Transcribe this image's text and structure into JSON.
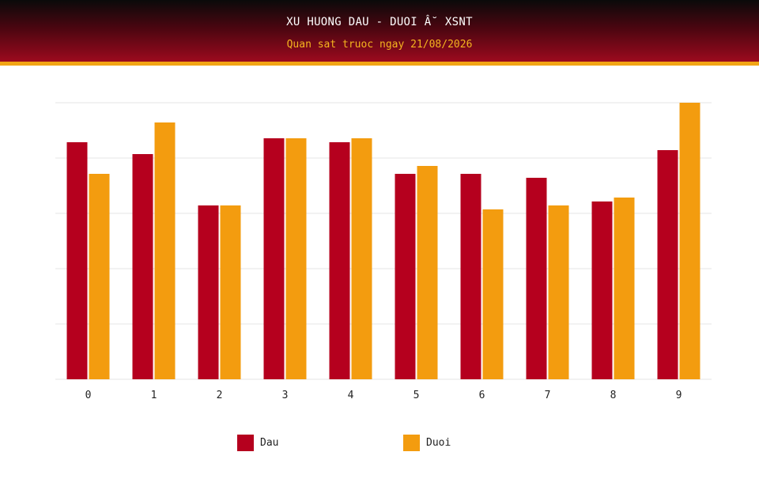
{
  "header": {
    "title": "XU HUONG DAU - DUOI Â˘ XSNT",
    "subtitle": "Quan sat truoc ngay 21/08/2026"
  },
  "colors": {
    "dau": "#b5001e",
    "duoi": "#f39c0f",
    "grid": "#e6e6e6"
  },
  "chart_data": {
    "type": "bar",
    "categories": [
      "0",
      "1",
      "2",
      "3",
      "4",
      "5",
      "6",
      "7",
      "8",
      "9"
    ],
    "series": [
      {
        "name": "Dau",
        "values": [
          60,
          57,
          44,
          61,
          60,
          52,
          52,
          51,
          45,
          58
        ]
      },
      {
        "name": "Duoi",
        "values": [
          52,
          65,
          44,
          61,
          61,
          54,
          43,
          44,
          46,
          70
        ]
      }
    ],
    "title": "XU HUONG DAU - DUOI Â˘ XSNT",
    "subtitle": "Quan sat truoc ngay 21/08/2026",
    "xlabel": "",
    "ylabel": "",
    "ylim": [
      0,
      70
    ],
    "grid": true,
    "legend": "bottom-center"
  }
}
